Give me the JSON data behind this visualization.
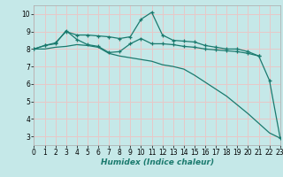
{
  "xlabel": "Humidex (Indice chaleur)",
  "bg_color": "#c5e8e8",
  "grid_color": "#e8c8c8",
  "line_color": "#1a7a6e",
  "xmin": 0,
  "xmax": 23,
  "ymin": 2.5,
  "ymax": 10.5,
  "yticks": [
    3,
    4,
    5,
    6,
    7,
    8,
    9,
    10
  ],
  "xticks": [
    0,
    1,
    2,
    3,
    4,
    5,
    6,
    7,
    8,
    9,
    10,
    11,
    12,
    13,
    14,
    15,
    16,
    17,
    18,
    19,
    20,
    21,
    22,
    23
  ],
  "line1_x": [
    0,
    1,
    2,
    3,
    4,
    5,
    6,
    7,
    8,
    9,
    10,
    11,
    12,
    13,
    14,
    15,
    16,
    17,
    18,
    19,
    20,
    21
  ],
  "line1_y": [
    8.0,
    8.2,
    8.35,
    9.0,
    8.8,
    8.8,
    8.75,
    8.7,
    8.6,
    8.7,
    9.7,
    10.1,
    8.8,
    8.5,
    8.45,
    8.4,
    8.2,
    8.1,
    8.0,
    8.0,
    7.85,
    7.6
  ],
  "line2_x": [
    0,
    1,
    2,
    3,
    4,
    5,
    6,
    7,
    8,
    9,
    10,
    11,
    12,
    13,
    14,
    15,
    16,
    17,
    18,
    19,
    20,
    21,
    22,
    23
  ],
  "line2_y": [
    8.0,
    8.2,
    8.3,
    9.05,
    8.55,
    8.25,
    8.15,
    7.8,
    7.85,
    8.3,
    8.6,
    8.3,
    8.3,
    8.25,
    8.15,
    8.1,
    8.0,
    7.95,
    7.9,
    7.85,
    7.75,
    7.6,
    6.2,
    2.9
  ],
  "line3_x": [
    0,
    1,
    2,
    3,
    4,
    5,
    6,
    7,
    8,
    9,
    10,
    11,
    12,
    13,
    14,
    15,
    16,
    17,
    18,
    19,
    20,
    21,
    22,
    23
  ],
  "line3_y": [
    8.0,
    8.0,
    8.1,
    8.15,
    8.25,
    8.2,
    8.1,
    7.75,
    7.6,
    7.5,
    7.4,
    7.3,
    7.1,
    7.0,
    6.85,
    6.5,
    6.1,
    5.7,
    5.3,
    4.8,
    4.3,
    3.75,
    3.2,
    2.9
  ]
}
